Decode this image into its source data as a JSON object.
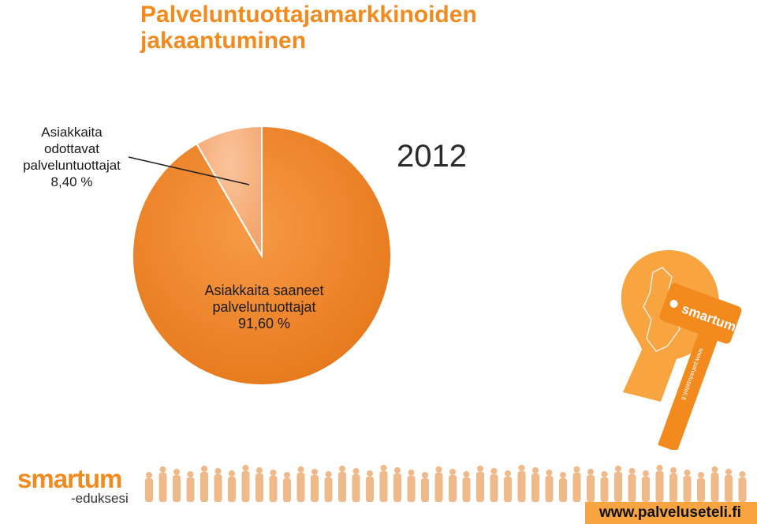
{
  "title": "Palveluntuottajamarkkinoiden\njakaantuminen",
  "year": "2012",
  "chart_data": {
    "type": "pie",
    "title": "Palveluntuottajamarkkinoiden jakaantuminen",
    "subtitle": "2012",
    "slices": [
      {
        "label": "Asiakkaita saaneet\npalveluntuottajat\n91,60 %",
        "value": 91.6,
        "color": "#f28a2e"
      },
      {
        "label": "Asiakkaita\nodottavat\npalveluntuottajat\n8,40 %",
        "value": 8.4,
        "color": "#f7b68a"
      }
    ]
  },
  "key": {
    "brand_text": "smartum",
    "url_text": "www.palveluseteli.fi"
  },
  "footer": {
    "brand": "smartum",
    "brand_sub": "-eduksesi",
    "url": "www.palveluseteli.fi"
  },
  "colors": {
    "accent": "#f28a1e",
    "url_bar": "#f7a441"
  }
}
